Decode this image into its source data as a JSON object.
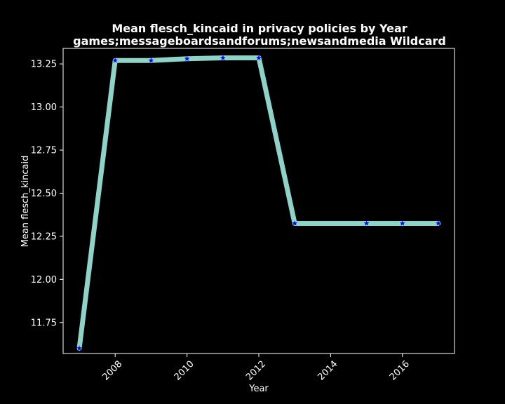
{
  "chart_data": {
    "type": "line",
    "title": "Mean flesch_kincaid in privacy policies by Year",
    "subtitle": "games;messageboardsandforums;newsandmedia Wildcard",
    "xlabel": "Year",
    "ylabel": "Mean flesch_kincaid",
    "xlim": [
      2006.55,
      2017.45
    ],
    "ylim": [
      11.57,
      13.34
    ],
    "x_ticks": [
      2008,
      2010,
      2012,
      2014,
      2016
    ],
    "y_ticks": [
      11.75,
      12.0,
      12.25,
      12.5,
      12.75,
      13.0,
      13.25
    ],
    "x_tick_labels": [
      "2008",
      "2010",
      "2012",
      "2014",
      "2016"
    ],
    "y_tick_labels": [
      "11.75",
      "12.00",
      "12.25",
      "12.50",
      "12.75",
      "13.00",
      "13.25"
    ],
    "grid": false,
    "series": [
      {
        "line_color": "#8dd3c7",
        "marker_color": "#0000ff",
        "marker": "star",
        "x": [
          2007,
          2008,
          2009,
          2010,
          2011,
          2012,
          2013,
          2015,
          2016,
          2017
        ],
        "y": [
          11.6,
          13.27,
          13.27,
          13.28,
          13.285,
          13.285,
          12.325,
          12.325,
          12.325,
          12.325
        ]
      }
    ]
  },
  "colors": {
    "background": "#000000",
    "axis": "#ffffff",
    "text": "#ffffff"
  }
}
